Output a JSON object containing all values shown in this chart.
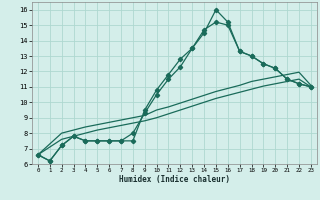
{
  "xlabel": "Humidex (Indice chaleur)",
  "xlim": [
    -0.5,
    23.5
  ],
  "ylim": [
    6,
    16.5
  ],
  "xticks": [
    0,
    1,
    2,
    3,
    4,
    5,
    6,
    7,
    8,
    9,
    10,
    11,
    12,
    13,
    14,
    15,
    16,
    17,
    18,
    19,
    20,
    21,
    22,
    23
  ],
  "yticks": [
    6,
    7,
    8,
    9,
    10,
    11,
    12,
    13,
    14,
    15,
    16
  ],
  "background_color": "#d4eeea",
  "grid_color": "#aed8d0",
  "line_color": "#1a6b5a",
  "line_width": 0.9,
  "marker": "D",
  "marker_size": 2.2,
  "curve_main": {
    "x": [
      0,
      1,
      2,
      3,
      4,
      5,
      6,
      7,
      8,
      9,
      10,
      11,
      12,
      13,
      14,
      15,
      16,
      17,
      18,
      19,
      20,
      21,
      22,
      23
    ],
    "y": [
      6.6,
      6.2,
      7.2,
      7.8,
      7.5,
      7.5,
      7.5,
      7.5,
      7.5,
      9.5,
      10.8,
      11.8,
      12.8,
      13.5,
      14.5,
      16.0,
      15.2,
      13.3,
      13.0,
      12.5,
      12.2,
      11.5,
      11.2,
      11.0
    ]
  },
  "curve_main2": {
    "x": [
      0,
      1,
      2,
      3,
      4,
      5,
      6,
      7,
      8,
      9,
      10,
      11,
      12,
      13,
      14,
      15,
      16,
      17,
      18,
      19,
      20,
      21,
      22,
      23
    ],
    "y": [
      6.6,
      6.2,
      7.2,
      7.8,
      7.5,
      7.5,
      7.5,
      7.5,
      8.0,
      9.3,
      10.5,
      11.5,
      12.3,
      13.5,
      14.7,
      15.2,
      15.0,
      13.3,
      13.0,
      12.5,
      12.2,
      11.5,
      11.2,
      11.0
    ]
  },
  "curve_lin1": {
    "x": [
      0,
      2,
      3,
      4,
      5,
      6,
      7,
      8,
      9,
      10,
      11,
      12,
      13,
      14,
      15,
      16,
      17,
      18,
      19,
      20,
      21,
      22,
      23
    ],
    "y": [
      6.6,
      8.0,
      8.2,
      8.4,
      8.55,
      8.7,
      8.85,
      9.0,
      9.15,
      9.5,
      9.7,
      9.95,
      10.2,
      10.45,
      10.7,
      10.9,
      11.1,
      11.35,
      11.5,
      11.65,
      11.8,
      11.95,
      11.1
    ]
  },
  "curve_lin2": {
    "x": [
      0,
      2,
      3,
      4,
      5,
      6,
      7,
      8,
      9,
      10,
      11,
      12,
      13,
      14,
      15,
      16,
      17,
      18,
      19,
      20,
      21,
      22,
      23
    ],
    "y": [
      6.6,
      7.6,
      7.8,
      8.0,
      8.2,
      8.35,
      8.5,
      8.65,
      8.8,
      9.0,
      9.25,
      9.5,
      9.75,
      10.0,
      10.25,
      10.45,
      10.65,
      10.85,
      11.05,
      11.2,
      11.35,
      11.5,
      11.0
    ]
  }
}
